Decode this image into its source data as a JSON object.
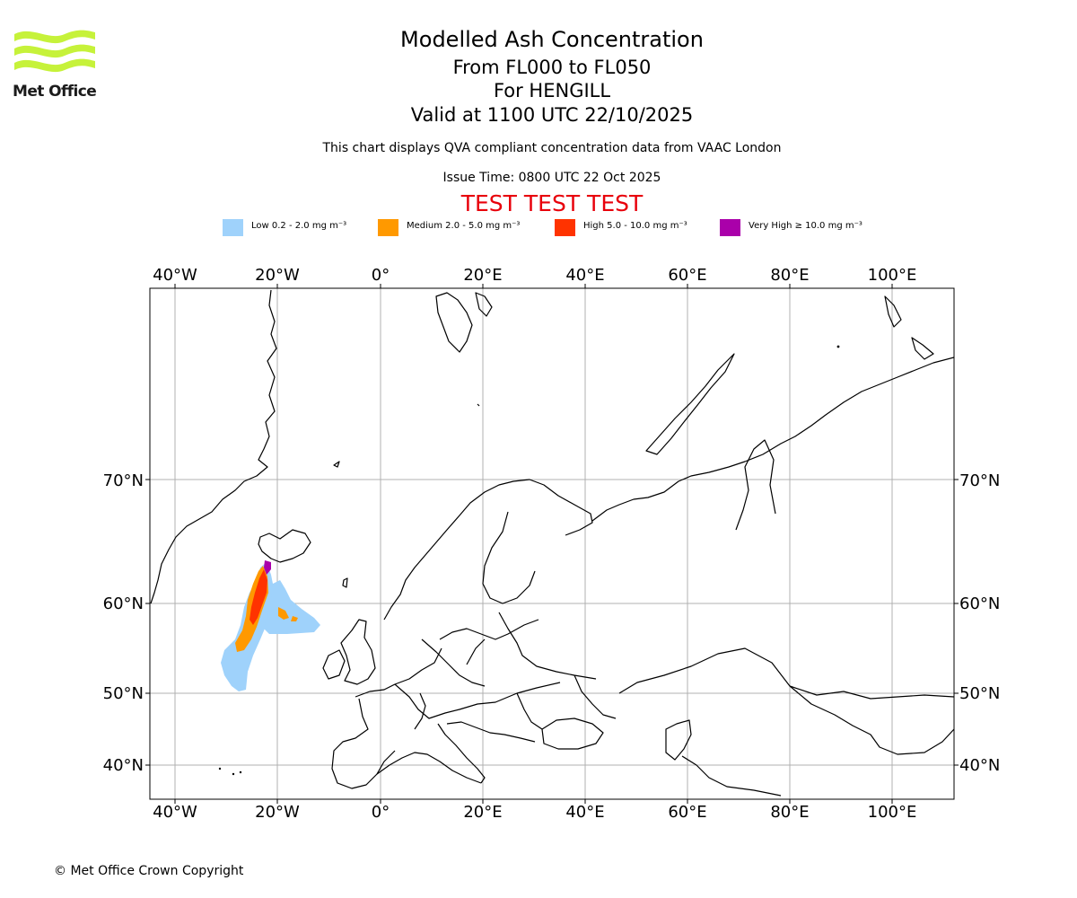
{
  "header": {
    "logo_text": "Met Office",
    "title": "Modelled Ash Concentration",
    "levels": "From FL000 to FL050",
    "volcano": "For HENGILL",
    "valid": "Valid at 1100 UTC 22/10/2025",
    "note": "This chart displays QVA compliant concentration data from VAAC London",
    "issue": "Issue Time: 0800 UTC 22 Oct 2025",
    "test_banner": "TEST TEST TEST"
  },
  "legend": [
    {
      "label": "Low 0.2 - 2.0 mg m⁻³",
      "color": "#9fd2fb"
    },
    {
      "label": "Medium 2.0 - 5.0 mg m⁻³",
      "color": "#ff9900"
    },
    {
      "label": "High 5.0 - 10.0 mg m⁻³",
      "color": "#ff3300"
    },
    {
      "label": "Very High ≥ 10.0 mg m⁻³",
      "color": "#aa00aa"
    }
  ],
  "map": {
    "lon_ticks": [
      "40°W",
      "20°W",
      "0°",
      "20°E",
      "40°E",
      "60°E",
      "80°E",
      "100°E"
    ],
    "lat_ticks": [
      "70°N",
      "60°N",
      "50°N",
      "40°N"
    ],
    "coastline_color": "#000000",
    "grid_color": "#b0b0b0"
  },
  "footer": {
    "copyright": "© Met Office Crown Copyright"
  }
}
